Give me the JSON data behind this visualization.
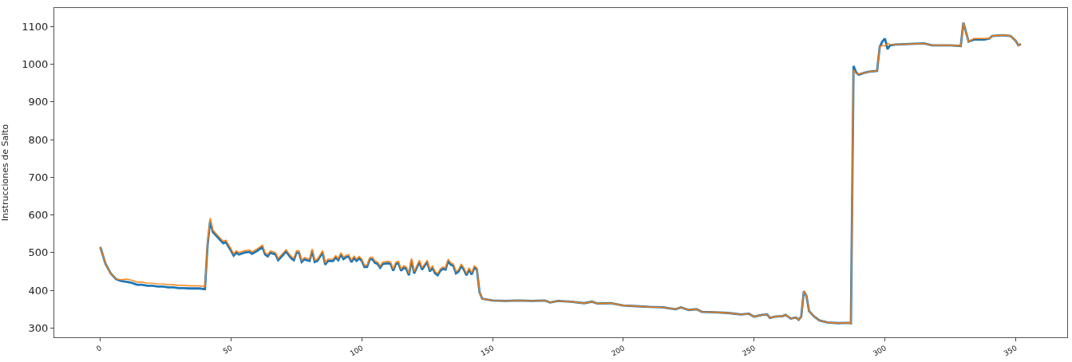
{
  "chart_data": {
    "type": "line",
    "ylabel": "Instrucciones de Salto",
    "x": [
      0,
      2,
      4,
      6,
      8,
      10,
      12,
      14,
      16,
      18,
      20,
      22,
      24,
      26,
      28,
      30,
      32,
      34,
      36,
      38,
      40,
      41,
      42,
      43,
      45,
      47,
      48,
      50,
      51,
      52,
      53,
      55,
      57,
      58,
      60,
      62,
      63,
      64,
      65,
      67,
      68,
      70,
      71,
      73,
      74,
      75,
      76,
      77,
      78,
      80,
      81,
      82,
      83,
      85,
      86,
      87,
      89,
      90,
      91,
      92,
      93,
      94,
      95,
      96,
      97,
      98,
      99,
      100,
      101,
      102,
      103,
      104,
      105,
      106,
      107,
      108,
      110,
      111,
      112,
      113,
      114,
      115,
      116,
      117,
      118,
      119,
      120,
      121,
      122,
      123,
      124,
      125,
      126,
      127,
      128,
      129,
      130,
      131,
      132,
      133,
      134,
      135,
      136,
      137,
      138,
      139,
      140,
      141,
      142,
      143,
      144,
      145,
      146,
      150,
      155,
      160,
      165,
      170,
      172,
      175,
      180,
      185,
      188,
      190,
      195,
      200,
      205,
      210,
      215,
      220,
      222,
      225,
      228,
      230,
      235,
      240,
      245,
      248,
      250,
      253,
      255,
      256,
      258,
      261,
      262,
      264,
      266,
      267,
      268,
      269,
      270,
      271,
      273,
      275,
      278,
      282,
      286,
      287,
      288,
      289,
      290,
      292,
      294,
      297,
      298,
      299,
      300,
      301,
      302,
      304,
      315,
      318,
      325,
      329,
      330,
      332,
      334,
      338,
      340,
      341,
      345,
      348,
      350,
      351,
      352
    ],
    "series": [
      {
        "color": "#1f77b4",
        "values": [
          515,
          470,
          445,
          430,
          425,
          423,
          420,
          415,
          415,
          412,
          412,
          410,
          410,
          408,
          408,
          406,
          406,
          405,
          405,
          405,
          403,
          520,
          585,
          555,
          540,
          525,
          528,
          505,
          492,
          500,
          495,
          500,
          502,
          497,
          505,
          515,
          495,
          490,
          500,
          495,
          480,
          495,
          503,
          485,
          480,
          500,
          500,
          475,
          482,
          478,
          505,
          475,
          478,
          500,
          468,
          478,
          478,
          487,
          480,
          495,
          483,
          488,
          490,
          475,
          486,
          478,
          485,
          478,
          462,
          462,
          482,
          483,
          473,
          470,
          460,
          470,
          472,
          470,
          452,
          470,
          472,
          452,
          460,
          457,
          440,
          480,
          445,
          460,
          475,
          455,
          465,
          475,
          450,
          460,
          445,
          440,
          452,
          457,
          455,
          478,
          468,
          465,
          445,
          450,
          465,
          455,
          440,
          455,
          442,
          460,
          455,
          395,
          378,
          373,
          372,
          373,
          372,
          373,
          368,
          372,
          370,
          366,
          370,
          365,
          366,
          360,
          358,
          356,
          355,
          350,
          355,
          348,
          350,
          343,
          342,
          340,
          336,
          338,
          330,
          335,
          336,
          327,
          330,
          332,
          335,
          325,
          328,
          322,
          330,
          398,
          385,
          345,
          330,
          320,
          315,
          313,
          314,
          313,
          995,
          978,
          972,
          977,
          980,
          982,
          1045,
          1060,
          1068,
          1040,
          1050,
          1052,
          1055,
          1050,
          1050,
          1048,
          1110,
          1060,
          1065,
          1065,
          1068,
          1075,
          1077,
          1075,
          1062,
          1050,
          1053
        ]
      },
      {
        "color": "#ff7f0e",
        "values": [
          515,
          470,
          445,
          430,
          428,
          430,
          427,
          422,
          422,
          419,
          419,
          417,
          417,
          415,
          415,
          413,
          413,
          412,
          412,
          412,
          410,
          525,
          592,
          560,
          545,
          530,
          533,
          510,
          497,
          505,
          500,
          505,
          507,
          502,
          510,
          520,
          500,
          495,
          505,
          500,
          485,
          500,
          508,
          490,
          485,
          505,
          505,
          480,
          487,
          483,
          510,
          480,
          483,
          505,
          473,
          483,
          483,
          492,
          485,
          500,
          488,
          493,
          495,
          480,
          491,
          483,
          490,
          483,
          467,
          467,
          487,
          488,
          478,
          475,
          465,
          475,
          477,
          475,
          457,
          475,
          477,
          457,
          465,
          462,
          445,
          485,
          450,
          465,
          480,
          460,
          470,
          480,
          455,
          465,
          450,
          445,
          457,
          462,
          460,
          483,
          473,
          470,
          450,
          455,
          470,
          460,
          445,
          460,
          447,
          465,
          460,
          395,
          378,
          373,
          372,
          373,
          372,
          373,
          368,
          372,
          370,
          366,
          370,
          365,
          366,
          360,
          358,
          356,
          355,
          350,
          355,
          348,
          350,
          343,
          342,
          340,
          336,
          338,
          330,
          335,
          336,
          327,
          330,
          332,
          335,
          325,
          328,
          322,
          330,
          398,
          385,
          345,
          330,
          320,
          315,
          313,
          314,
          313,
          985,
          975,
          974,
          977,
          980,
          982,
          1045,
          1050,
          1048,
          1055,
          1052,
          1052,
          1055,
          1050,
          1050,
          1048,
          1110,
          1060,
          1068,
          1068,
          1068,
          1075,
          1077,
          1075,
          1062,
          1050,
          1053
        ]
      }
    ],
    "xlim": [
      -17.6,
      369.7
    ],
    "ylim": [
      275.5,
      1149
    ],
    "xticks": [
      0,
      50,
      100,
      150,
      200,
      250,
      300,
      350
    ],
    "yticks": [
      300,
      400,
      500,
      600,
      700,
      800,
      900,
      1000,
      1100
    ],
    "marker": "none",
    "line_style": "solid"
  }
}
